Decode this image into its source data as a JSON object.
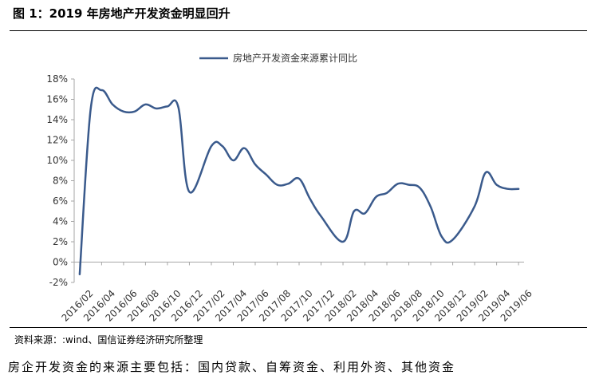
{
  "figure_title": "图 1：2019 年房地产开发资金明显回升",
  "source": "资料来源：:wind、国信证券经济研究所整理",
  "body_text_cut": "房企开发资金的来源主要包括：国内贷款、自筹资金、利用外资、其他资金",
  "colors": {
    "line": "#3a5a8c",
    "axis": "#a6a6a6"
  },
  "chart_data": {
    "type": "line",
    "title": "",
    "xlabel": "",
    "ylabel": "",
    "ylim": [
      -0.02,
      0.18
    ],
    "y_ticks": [
      -0.02,
      0,
      0.02,
      0.04,
      0.06,
      0.08,
      0.1,
      0.12,
      0.14,
      0.16,
      0.18
    ],
    "y_tick_labels": [
      "-2%",
      "0%",
      "2%",
      "4%",
      "6%",
      "8%",
      "10%",
      "12%",
      "14%",
      "16%",
      "18%"
    ],
    "x_tick_labels": [
      "2016/02",
      "2016/04",
      "2016/06",
      "2016/08",
      "2016/10",
      "2016/12",
      "2017/02",
      "2017/04",
      "2017/06",
      "2017/08",
      "2017/10",
      "2017/12",
      "2018/02",
      "2018/04",
      "2018/06",
      "2018/08",
      "2018/10",
      "2018/12",
      "2019/02",
      "2019/04",
      "2019/06"
    ],
    "legend_position": "top-center",
    "grid": false,
    "series": [
      {
        "name": "房地产开发资金来源累计同比",
        "x": [
          "2016/02",
          "2016/03",
          "2016/04",
          "2016/05",
          "2016/06",
          "2016/07",
          "2016/08",
          "2016/09",
          "2016/10",
          "2016/11",
          "2016/12",
          "2017/02",
          "2017/03",
          "2017/04",
          "2017/05",
          "2017/06",
          "2017/07",
          "2017/08",
          "2017/09",
          "2017/10",
          "2017/11",
          "2017/12",
          "2018/02",
          "2018/03",
          "2018/04",
          "2018/05",
          "2018/06",
          "2018/07",
          "2018/08",
          "2018/09",
          "2018/10",
          "2018/11",
          "2018/12",
          "2019/02",
          "2019/03",
          "2019/04",
          "2019/05",
          "2019/06"
        ],
        "values": [
          -0.012,
          0.15,
          0.169,
          0.155,
          0.148,
          0.148,
          0.155,
          0.151,
          0.153,
          0.152,
          0.069,
          0.114,
          0.114,
          0.1,
          0.112,
          0.096,
          0.086,
          0.076,
          0.077,
          0.082,
          0.062,
          0.045,
          0.02,
          0.05,
          0.048,
          0.064,
          0.068,
          0.077,
          0.076,
          0.073,
          0.054,
          0.025,
          0.022,
          0.055,
          0.088,
          0.076,
          0.072,
          0.072
        ]
      }
    ]
  }
}
